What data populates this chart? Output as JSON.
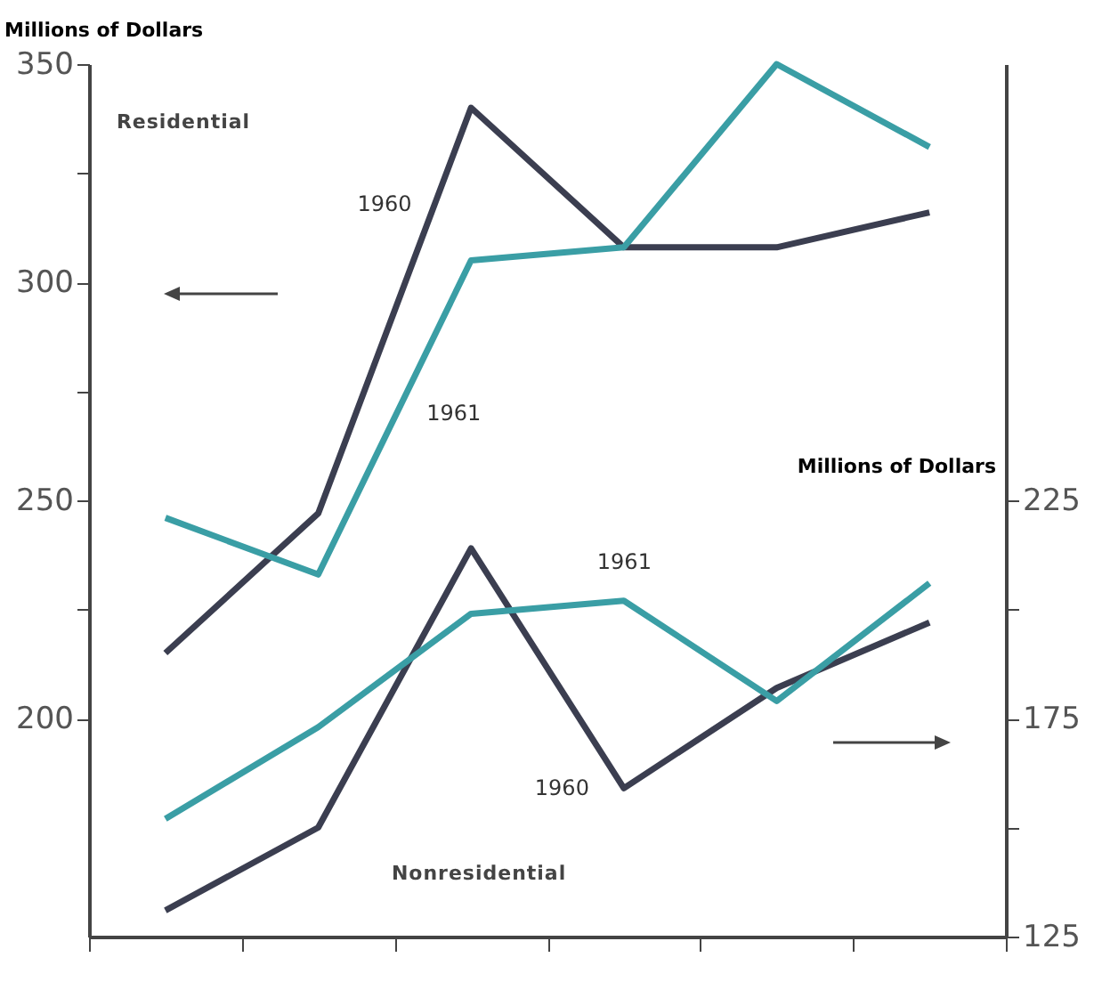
{
  "chart_data": {
    "type": "line",
    "ylabel": "Millions of Dollars",
    "y2label": "Millions of Dollars",
    "annotations": [
      "Residential",
      "Nonresidential"
    ],
    "categories": [
      null,
      null,
      null,
      null,
      null,
      null
    ],
    "series": [
      {
        "name": "1960",
        "color": "#3b3e50",
        "values": [
          215,
          247,
          340,
          308,
          308,
          316
        ]
      },
      {
        "name": "1961",
        "color": "#3a9ea5",
        "values": [
          246,
          233,
          305,
          308,
          350,
          331
        ]
      },
      {
        "name": "1960",
        "color": "#3b3e50",
        "axis": "y2",
        "values": [
          131,
          150,
          214,
          159,
          182,
          197
        ]
      },
      {
        "name": "1961",
        "color": "#3a9ea5",
        "axis": "y2",
        "values": [
          152,
          173,
          199,
          202,
          179,
          206
        ]
      }
    ],
    "ylim": [
      150,
      350
    ],
    "yticks": [
      {
        "value": 200,
        "label": "200"
      },
      {
        "value": 225,
        "label": null
      },
      {
        "value": 250,
        "label": "250"
      },
      {
        "value": 275,
        "label": null
      },
      {
        "value": 300,
        "label": "300"
      },
      {
        "value": 325,
        "label": null
      },
      {
        "value": 350,
        "label": "350"
      }
    ],
    "y2lim": [
      125,
      325
    ],
    "y2ticks": [
      {
        "value": 125,
        "label": "125"
      },
      {
        "value": 150,
        "label": null
      },
      {
        "value": 175,
        "label": "175"
      },
      {
        "value": 200,
        "label": null
      },
      {
        "value": 225,
        "label": "225"
      }
    ],
    "grid": false,
    "legend": false,
    "marker": "none"
  }
}
